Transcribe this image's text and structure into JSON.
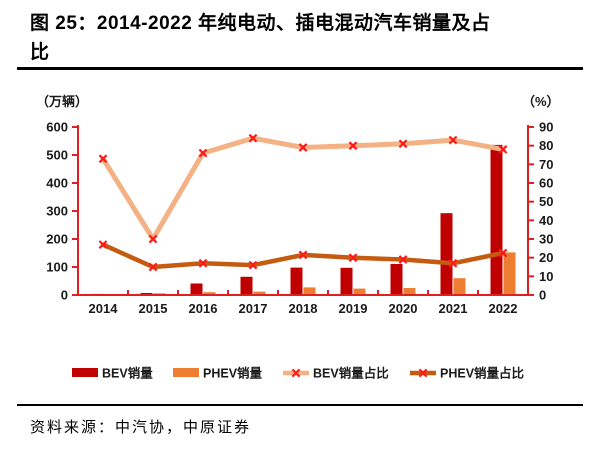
{
  "page": {
    "title_line1": "图 25：2014-2022 年纯电动、插电混动汽车销量及占",
    "title_line2": "比",
    "source": "资料来源：中汽协，中原证券"
  },
  "chart_data": {
    "type": "bar",
    "subtype": "combo-bar-line-dual-axis",
    "categories": [
      "2014",
      "2015",
      "2016",
      "2017",
      "2018",
      "2019",
      "2020",
      "2021",
      "2022"
    ],
    "series": [
      {
        "name": "BEV销量",
        "type": "bar",
        "axis": "left",
        "unit": "万辆",
        "color": "#c00000",
        "values": [
          4,
          7,
          41,
          65,
          98,
          97,
          111,
          292,
          536
        ]
      },
      {
        "name": "PHEV销量",
        "type": "bar",
        "axis": "left",
        "unit": "万辆",
        "color": "#ed7d31",
        "values": [
          3,
          6,
          10,
          12,
          27,
          23,
          25,
          60,
          152
        ]
      },
      {
        "name": "BEV销量占比",
        "type": "line",
        "axis": "right",
        "unit": "%",
        "color": "#f4b183",
        "marker": "x",
        "marker_color": "#ff1a1a",
        "values": [
          73,
          30,
          76,
          84,
          79,
          80,
          81,
          83,
          78
        ]
      },
      {
        "name": "PHEV销量占比",
        "type": "line",
        "axis": "right",
        "unit": "%",
        "color": "#c55a11",
        "marker": "x",
        "marker_color": "#ff1a1a",
        "values": [
          27,
          15,
          17,
          16,
          21.5,
          20,
          19,
          17,
          22.5
        ]
      }
    ],
    "left_axis": {
      "label": "（万辆）",
      "min": 0,
      "max": 600,
      "step": 100
    },
    "right_axis": {
      "label": "（%）",
      "min": 0,
      "max": 90,
      "step": 10
    },
    "axis_color": "#e02020",
    "tick_label_color": "#1a1a1a",
    "grid": false,
    "legend_position": "bottom"
  }
}
